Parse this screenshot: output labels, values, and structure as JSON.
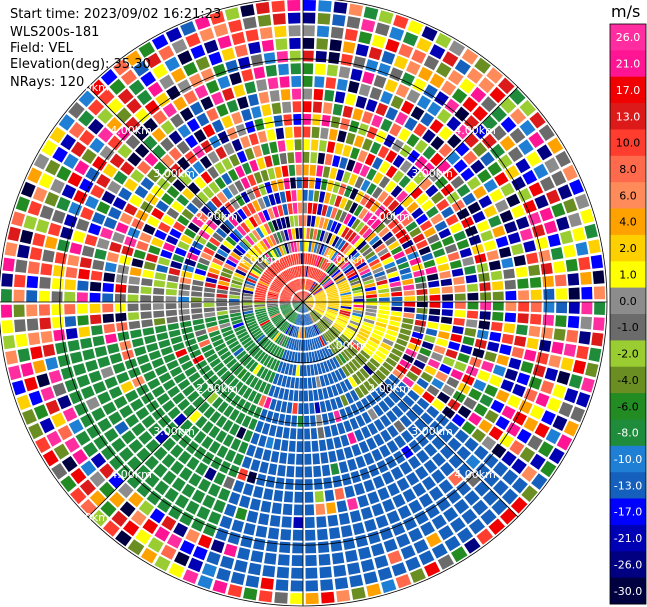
{
  "info": {
    "start_time": "Start time: 2023/09/02 16:21:23",
    "instrument": "WLS200s-181",
    "field": "Field: VEL",
    "elevation": "Elevation(deg): 35.30",
    "nrays": "NRays: 120"
  },
  "chart_data": {
    "type": "heatmap",
    "projection": "polar",
    "n_rays": 120,
    "range_rings_km": [
      1.0,
      2.0,
      3.0,
      4.0,
      5.0
    ],
    "max_range_km": 5.0,
    "range_ring_labels": [
      "1.00km",
      "1.00km",
      "1.00km",
      "2.00km",
      "2.00km",
      "2.00km",
      "2.00km",
      "3.00km",
      "3.00km",
      "3.00km",
      "3.00km",
      "4.00km",
      "4.00km",
      "4.00km",
      "4.00km",
      "5.00km",
      "5.00km"
    ],
    "colorbar": {
      "unit": "m/s",
      "ticks": [
        "26.0",
        "21.0",
        "17.0",
        "13.0",
        "10.0",
        "8.0",
        "6.0",
        "4.0",
        "2.0",
        "1.0",
        "0.0",
        "-1.0",
        "-2.0",
        "-4.0",
        "-6.0",
        "-8.0",
        "-10.0",
        "-13.0",
        "-17.0",
        "-21.0",
        "-26.0",
        "-30.0"
      ],
      "colors": [
        "#ff2d9f",
        "#ff1493",
        "#f00000",
        "#dd1a1a",
        "#ff3d2e",
        "#ff6a4d",
        "#ff8a5a",
        "#ffa200",
        "#ffd000",
        "#ffff00",
        "#8c8c8c",
        "#6b6b6b",
        "#9acd32",
        "#6b8e23",
        "#228b22",
        "#1e8c3a",
        "#1e7fd4",
        "#1560bd",
        "#0000ff",
        "#0000b4",
        "#000080",
        "#000040"
      ]
    },
    "velocity_regions": [
      {
        "azimuth_deg": [
          -90,
          40
        ],
        "range_km": [
          0,
          0.9
        ],
        "value": 12
      },
      {
        "azimuth_deg": [
          60,
          110
        ],
        "range_km": [
          0,
          0.9
        ],
        "value": 3
      },
      {
        "azimuth_deg": [
          90,
          130
        ],
        "range_km": [
          0,
          1.6
        ],
        "value": 1.5
      },
      {
        "azimuth_deg": [
          100,
          150
        ],
        "range_km": [
          0,
          1.9
        ],
        "value": -3
      },
      {
        "azimuth_deg": [
          130,
          200
        ],
        "range_km": [
          0,
          4.7
        ],
        "value": -12
      },
      {
        "azimuth_deg": [
          200,
          260
        ],
        "range_km": [
          0,
          4.2
        ],
        "value": -7
      },
      {
        "azimuth_deg": [
          255,
          280
        ],
        "range_km": [
          0,
          3.0
        ],
        "value": -0.5
      }
    ]
  }
}
